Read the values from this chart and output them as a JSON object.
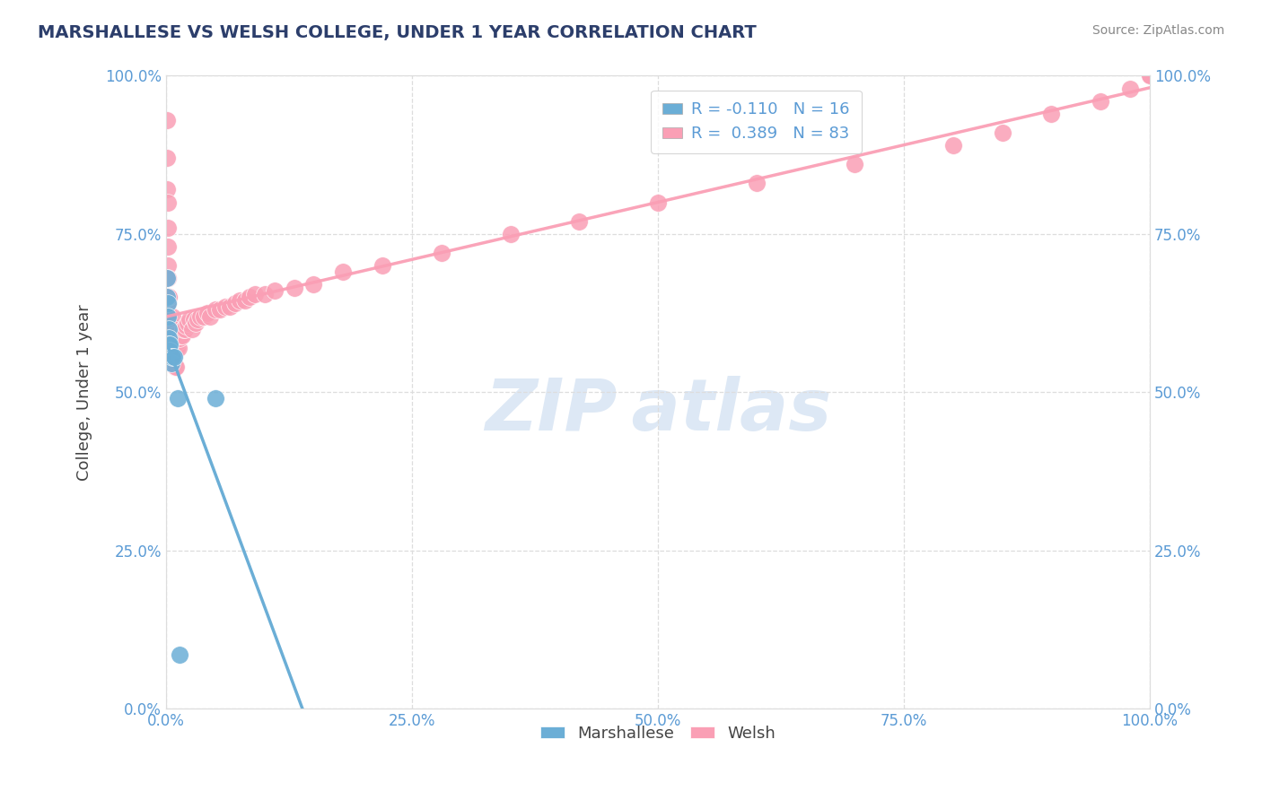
{
  "title": "MARSHALLESE VS WELSH COLLEGE, UNDER 1 YEAR CORRELATION CHART",
  "source": "Source: ZipAtlas.com",
  "ylabel": "College, Under 1 year",
  "watermark": "ZIPAtlas",
  "legend_labels_bottom": [
    "Marshallese",
    "Welsh"
  ],
  "marshallese_x": [
    0.001,
    0.001,
    0.002,
    0.002,
    0.003,
    0.003,
    0.003,
    0.004,
    0.004,
    0.005,
    0.005,
    0.006,
    0.008,
    0.012,
    0.014,
    0.05
  ],
  "marshallese_y": [
    0.68,
    0.65,
    0.64,
    0.62,
    0.6,
    0.585,
    0.575,
    0.565,
    0.575,
    0.555,
    0.545,
    0.555,
    0.555,
    0.49,
    0.085,
    0.49
  ],
  "welsh_x": [
    0.0005,
    0.001,
    0.001,
    0.0015,
    0.0015,
    0.0015,
    0.002,
    0.002,
    0.002,
    0.0025,
    0.0025,
    0.0025,
    0.003,
    0.003,
    0.003,
    0.003,
    0.0035,
    0.0035,
    0.004,
    0.004,
    0.004,
    0.0045,
    0.0045,
    0.005,
    0.005,
    0.0055,
    0.006,
    0.006,
    0.007,
    0.007,
    0.008,
    0.009,
    0.009,
    0.01,
    0.01,
    0.011,
    0.012,
    0.013,
    0.014,
    0.015,
    0.016,
    0.017,
    0.019,
    0.02,
    0.022,
    0.024,
    0.026,
    0.028,
    0.03,
    0.032,
    0.035,
    0.038,
    0.042,
    0.045,
    0.05,
    0.055,
    0.06,
    0.065,
    0.07,
    0.075,
    0.08,
    0.085,
    0.09,
    0.1,
    0.11,
    0.13,
    0.15,
    0.18,
    0.22,
    0.28,
    0.35,
    0.42,
    0.5,
    0.6,
    0.7,
    0.8,
    0.85,
    0.9,
    0.95,
    0.98,
    1.0,
    1.0,
    1.0
  ],
  "welsh_y": [
    0.93,
    0.87,
    0.82,
    0.8,
    0.76,
    0.73,
    0.7,
    0.68,
    0.64,
    0.65,
    0.62,
    0.6,
    0.65,
    0.62,
    0.59,
    0.57,
    0.6,
    0.57,
    0.61,
    0.58,
    0.55,
    0.6,
    0.57,
    0.6,
    0.56,
    0.6,
    0.62,
    0.57,
    0.6,
    0.56,
    0.59,
    0.57,
    0.54,
    0.58,
    0.54,
    0.57,
    0.58,
    0.57,
    0.585,
    0.59,
    0.59,
    0.6,
    0.6,
    0.605,
    0.61,
    0.615,
    0.6,
    0.615,
    0.61,
    0.615,
    0.62,
    0.62,
    0.625,
    0.62,
    0.63,
    0.63,
    0.635,
    0.635,
    0.64,
    0.645,
    0.645,
    0.65,
    0.655,
    0.655,
    0.66,
    0.665,
    0.67,
    0.69,
    0.7,
    0.72,
    0.75,
    0.77,
    0.8,
    0.83,
    0.86,
    0.89,
    0.91,
    0.94,
    0.96,
    0.98,
    1.0,
    1.0,
    1.0
  ],
  "marshallese_color": "#6baed6",
  "welsh_color": "#fa9fb5",
  "marshallese_R": -0.11,
  "marshallese_N": 16,
  "welsh_R": 0.389,
  "welsh_N": 83,
  "xlim": [
    0.0,
    1.0
  ],
  "ylim": [
    0.0,
    1.0
  ],
  "xtick_vals": [
    0.0,
    0.25,
    0.5,
    0.75,
    1.0
  ],
  "ytick_vals": [
    0.0,
    0.25,
    0.5,
    0.75,
    1.0
  ],
  "xticklabels": [
    "0.0%",
    "25.0%",
    "50.0%",
    "75.0%",
    "100.0%"
  ],
  "yticklabels": [
    "0.0%",
    "25.0%",
    "50.0%",
    "75.0%",
    "100.0%"
  ],
  "background_color": "#ffffff",
  "grid_color": "#dddddd",
  "title_color": "#2c3e6b",
  "source_color": "#888888",
  "watermark_color": "#dde8f5",
  "scatter_size": 200,
  "tick_color": "#5b9bd5",
  "line_solid_end": 0.5
}
